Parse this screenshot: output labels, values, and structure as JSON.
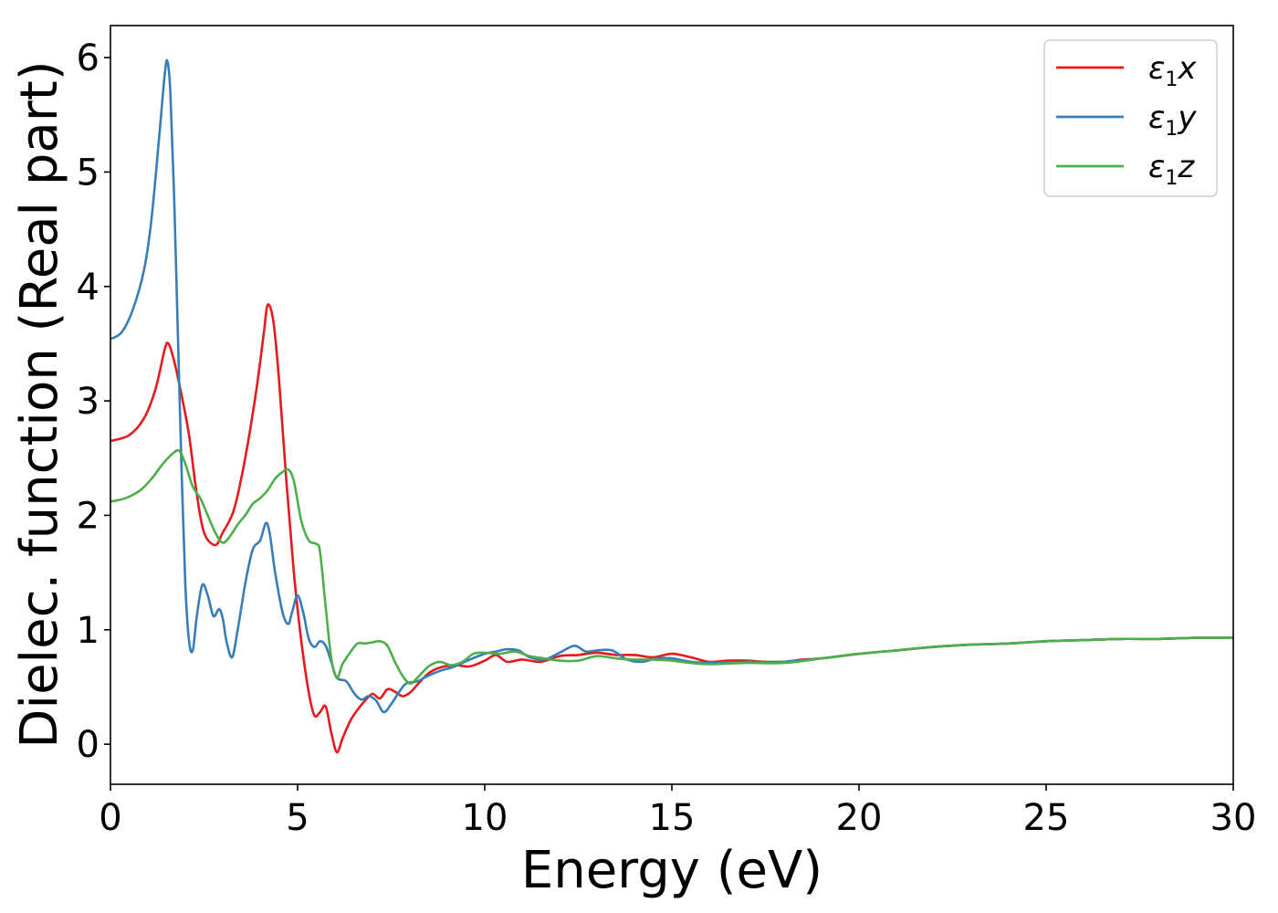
{
  "chart_data": {
    "type": "line",
    "title": "",
    "xlabel": "Energy (eV)",
    "ylabel": "Dielec. function (Real part)",
    "xlim": [
      0,
      30
    ],
    "ylim": [
      -0.35,
      6.28
    ],
    "xticks": [
      0,
      5,
      10,
      15,
      20,
      25,
      30
    ],
    "yticks": [
      0,
      1,
      2,
      3,
      4,
      5,
      6
    ],
    "grid": false,
    "legend_position": "top-right",
    "series": [
      {
        "name": "ε1x",
        "legend": {
          "base": "ε",
          "sub": "1",
          "suffix": "x"
        },
        "color": "#e41a1c",
        "points": [
          [
            0,
            2.65
          ],
          [
            0.5,
            2.7
          ],
          [
            0.9,
            2.85
          ],
          [
            1.2,
            3.1
          ],
          [
            1.45,
            3.45
          ],
          [
            1.55,
            3.5
          ],
          [
            1.7,
            3.35
          ],
          [
            1.9,
            3.05
          ],
          [
            2.1,
            2.7
          ],
          [
            2.3,
            2.2
          ],
          [
            2.5,
            1.85
          ],
          [
            2.8,
            1.74
          ],
          [
            3.0,
            1.85
          ],
          [
            3.3,
            2.05
          ],
          [
            3.6,
            2.5
          ],
          [
            3.9,
            3.1
          ],
          [
            4.1,
            3.6
          ],
          [
            4.2,
            3.84
          ],
          [
            4.35,
            3.7
          ],
          [
            4.5,
            3.2
          ],
          [
            4.7,
            2.3
          ],
          [
            4.9,
            1.5
          ],
          [
            5.1,
            0.9
          ],
          [
            5.3,
            0.45
          ],
          [
            5.45,
            0.25
          ],
          [
            5.6,
            0.28
          ],
          [
            5.75,
            0.33
          ],
          [
            5.9,
            0.1
          ],
          [
            6.05,
            -0.07
          ],
          [
            6.2,
            0.05
          ],
          [
            6.4,
            0.2
          ],
          [
            6.6,
            0.3
          ],
          [
            6.8,
            0.38
          ],
          [
            7.0,
            0.44
          ],
          [
            7.2,
            0.4
          ],
          [
            7.4,
            0.48
          ],
          [
            7.6,
            0.46
          ],
          [
            7.8,
            0.42
          ],
          [
            8.0,
            0.45
          ],
          [
            8.2,
            0.52
          ],
          [
            8.5,
            0.62
          ],
          [
            8.8,
            0.67
          ],
          [
            9.2,
            0.69
          ],
          [
            9.6,
            0.68
          ],
          [
            10.0,
            0.73
          ],
          [
            10.3,
            0.78
          ],
          [
            10.6,
            0.72
          ],
          [
            11.0,
            0.74
          ],
          [
            11.5,
            0.72
          ],
          [
            12.0,
            0.77
          ],
          [
            12.5,
            0.78
          ],
          [
            13.0,
            0.8
          ],
          [
            13.5,
            0.78
          ],
          [
            14.0,
            0.78
          ],
          [
            14.5,
            0.76
          ],
          [
            15.0,
            0.79
          ],
          [
            15.5,
            0.76
          ],
          [
            16.0,
            0.72
          ],
          [
            16.5,
            0.73
          ],
          [
            17.0,
            0.73
          ],
          [
            17.5,
            0.72
          ],
          [
            18.0,
            0.72
          ],
          [
            18.5,
            0.74
          ],
          [
            19.0,
            0.75
          ],
          [
            20,
            0.79
          ],
          [
            21,
            0.82
          ],
          [
            22,
            0.85
          ],
          [
            23,
            0.87
          ],
          [
            24,
            0.88
          ],
          [
            25,
            0.9
          ],
          [
            26,
            0.91
          ],
          [
            27,
            0.92
          ],
          [
            28,
            0.92
          ],
          [
            29,
            0.93
          ],
          [
            30,
            0.93
          ]
        ]
      },
      {
        "name": "ε1y",
        "legend": {
          "base": "ε",
          "sub": "1",
          "suffix": "y"
        },
        "color": "#377eb8",
        "points": [
          [
            0,
            3.54
          ],
          [
            0.3,
            3.6
          ],
          [
            0.6,
            3.8
          ],
          [
            0.9,
            4.15
          ],
          [
            1.1,
            4.6
          ],
          [
            1.3,
            5.3
          ],
          [
            1.45,
            5.85
          ],
          [
            1.52,
            5.97
          ],
          [
            1.6,
            5.7
          ],
          [
            1.7,
            4.8
          ],
          [
            1.8,
            3.6
          ],
          [
            1.9,
            2.4
          ],
          [
            2.0,
            1.4
          ],
          [
            2.1,
            0.9
          ],
          [
            2.2,
            0.82
          ],
          [
            2.3,
            1.1
          ],
          [
            2.45,
            1.39
          ],
          [
            2.6,
            1.3
          ],
          [
            2.75,
            1.12
          ],
          [
            2.9,
            1.18
          ],
          [
            3.0,
            1.1
          ],
          [
            3.1,
            0.9
          ],
          [
            3.25,
            0.76
          ],
          [
            3.4,
            1.0
          ],
          [
            3.6,
            1.4
          ],
          [
            3.8,
            1.7
          ],
          [
            4.0,
            1.78
          ],
          [
            4.15,
            1.93
          ],
          [
            4.25,
            1.85
          ],
          [
            4.4,
            1.5
          ],
          [
            4.6,
            1.15
          ],
          [
            4.75,
            1.05
          ],
          [
            4.85,
            1.15
          ],
          [
            5.0,
            1.3
          ],
          [
            5.15,
            1.15
          ],
          [
            5.3,
            0.92
          ],
          [
            5.45,
            0.85
          ],
          [
            5.6,
            0.9
          ],
          [
            5.75,
            0.86
          ],
          [
            5.9,
            0.72
          ],
          [
            6.05,
            0.58
          ],
          [
            6.3,
            0.55
          ],
          [
            6.5,
            0.45
          ],
          [
            6.7,
            0.39
          ],
          [
            6.9,
            0.42
          ],
          [
            7.1,
            0.38
          ],
          [
            7.3,
            0.28
          ],
          [
            7.5,
            0.35
          ],
          [
            7.7,
            0.45
          ],
          [
            7.9,
            0.53
          ],
          [
            8.2,
            0.55
          ],
          [
            8.5,
            0.6
          ],
          [
            8.8,
            0.64
          ],
          [
            9.2,
            0.68
          ],
          [
            9.6,
            0.74
          ],
          [
            10.0,
            0.79
          ],
          [
            10.3,
            0.81
          ],
          [
            10.6,
            0.83
          ],
          [
            10.9,
            0.82
          ],
          [
            11.2,
            0.76
          ],
          [
            11.6,
            0.74
          ],
          [
            12.0,
            0.8
          ],
          [
            12.4,
            0.86
          ],
          [
            12.7,
            0.81
          ],
          [
            13.0,
            0.82
          ],
          [
            13.4,
            0.82
          ],
          [
            13.8,
            0.74
          ],
          [
            14.2,
            0.72
          ],
          [
            14.6,
            0.75
          ],
          [
            15.0,
            0.75
          ],
          [
            15.5,
            0.72
          ],
          [
            16.0,
            0.71
          ],
          [
            17.0,
            0.72
          ],
          [
            18.0,
            0.72
          ],
          [
            19.0,
            0.75
          ],
          [
            20,
            0.79
          ],
          [
            21,
            0.82
          ],
          [
            22,
            0.85
          ],
          [
            23,
            0.87
          ],
          [
            24,
            0.88
          ],
          [
            25,
            0.9
          ],
          [
            26,
            0.91
          ],
          [
            27,
            0.92
          ],
          [
            28,
            0.92
          ],
          [
            29,
            0.93
          ],
          [
            30,
            0.93
          ]
        ]
      },
      {
        "name": "ε1z",
        "legend": {
          "base": "ε",
          "sub": "1",
          "suffix": "z"
        },
        "color": "#4daf4a",
        "points": [
          [
            0,
            2.12
          ],
          [
            0.4,
            2.15
          ],
          [
            0.8,
            2.22
          ],
          [
            1.1,
            2.32
          ],
          [
            1.4,
            2.45
          ],
          [
            1.7,
            2.55
          ],
          [
            1.85,
            2.56
          ],
          [
            2.0,
            2.45
          ],
          [
            2.2,
            2.25
          ],
          [
            2.4,
            2.15
          ],
          [
            2.6,
            2.0
          ],
          [
            2.8,
            1.85
          ],
          [
            3.0,
            1.76
          ],
          [
            3.2,
            1.82
          ],
          [
            3.4,
            1.92
          ],
          [
            3.6,
            2.0
          ],
          [
            3.8,
            2.1
          ],
          [
            4.0,
            2.15
          ],
          [
            4.2,
            2.22
          ],
          [
            4.4,
            2.32
          ],
          [
            4.6,
            2.38
          ],
          [
            4.75,
            2.4
          ],
          [
            4.9,
            2.3
          ],
          [
            5.1,
            1.95
          ],
          [
            5.3,
            1.78
          ],
          [
            5.5,
            1.75
          ],
          [
            5.6,
            1.68
          ],
          [
            5.75,
            1.2
          ],
          [
            5.9,
            0.75
          ],
          [
            6.05,
            0.58
          ],
          [
            6.2,
            0.7
          ],
          [
            6.4,
            0.8
          ],
          [
            6.6,
            0.88
          ],
          [
            6.8,
            0.88
          ],
          [
            7.0,
            0.89
          ],
          [
            7.2,
            0.9
          ],
          [
            7.4,
            0.86
          ],
          [
            7.6,
            0.72
          ],
          [
            7.8,
            0.6
          ],
          [
            8.0,
            0.53
          ],
          [
            8.2,
            0.58
          ],
          [
            8.5,
            0.68
          ],
          [
            8.8,
            0.72
          ],
          [
            9.1,
            0.69
          ],
          [
            9.4,
            0.72
          ],
          [
            9.7,
            0.79
          ],
          [
            10.0,
            0.8
          ],
          [
            10.4,
            0.79
          ],
          [
            10.8,
            0.81
          ],
          [
            11.2,
            0.77
          ],
          [
            11.6,
            0.75
          ],
          [
            12.0,
            0.73
          ],
          [
            12.5,
            0.73
          ],
          [
            13.0,
            0.77
          ],
          [
            13.5,
            0.75
          ],
          [
            14.0,
            0.74
          ],
          [
            14.5,
            0.74
          ],
          [
            15.0,
            0.73
          ],
          [
            15.5,
            0.71
          ],
          [
            16.0,
            0.7
          ],
          [
            17.0,
            0.71
          ],
          [
            18.0,
            0.71
          ],
          [
            19.0,
            0.75
          ],
          [
            20,
            0.79
          ],
          [
            21,
            0.82
          ],
          [
            22,
            0.85
          ],
          [
            23,
            0.87
          ],
          [
            24,
            0.88
          ],
          [
            25,
            0.9
          ],
          [
            26,
            0.91
          ],
          [
            27,
            0.92
          ],
          [
            28,
            0.92
          ],
          [
            29,
            0.93
          ],
          [
            30,
            0.93
          ]
        ]
      }
    ]
  }
}
